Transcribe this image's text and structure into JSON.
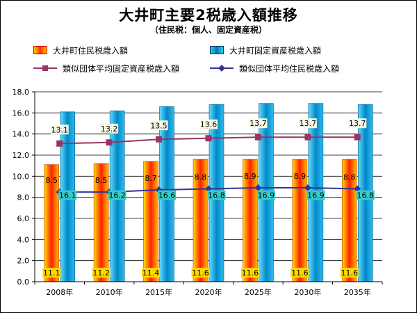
{
  "chart_data": {
    "type": "bar",
    "title": "大井町主要2税歳入額推移",
    "subtitle": "（住民税：個人、固定資産税）",
    "categories": [
      "2008年",
      "2010年",
      "2015年",
      "2020年",
      "2025年",
      "2030年",
      "2035年"
    ],
    "ylim": [
      0,
      18
    ],
    "ytick_step": 2,
    "ytick_format": "0.0",
    "grid": true,
    "legend_position": "top",
    "series": [
      {
        "name": "大井町住民税歳入額",
        "kind": "bar",
        "color": "#FF3300",
        "values": [
          11.1,
          11.2,
          11.4,
          11.6,
          11.6,
          11.6,
          11.6
        ]
      },
      {
        "name": "大井町固定資産税歳入額",
        "kind": "bar",
        "color": "#0099CC",
        "values": [
          16.1,
          16.2,
          16.6,
          16.8,
          16.9,
          16.9,
          16.8
        ]
      },
      {
        "name": "類似団体平均固定資産税歳入額",
        "kind": "line",
        "color": "#993366",
        "marker": "square",
        "values": [
          13.1,
          13.2,
          13.5,
          13.6,
          13.7,
          13.7,
          13.7
        ]
      },
      {
        "name": "類似団体平均住民税歳入額",
        "kind": "line",
        "color": "#333399",
        "marker": "diamond",
        "values": [
          8.5,
          8.5,
          8.7,
          8.8,
          8.9,
          8.9,
          8.8
        ]
      }
    ]
  }
}
